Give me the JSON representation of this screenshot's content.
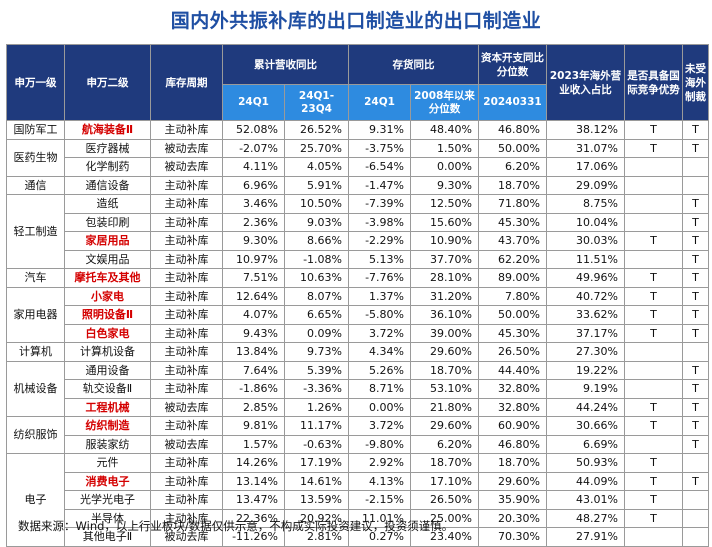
{
  "title": "国内外共振补库的出口制造业的出口制造业",
  "headers": {
    "level1": "申万一级",
    "level2": "申万二级",
    "cycle": "库存周期",
    "revenue_group": "累计营收同比",
    "inventory_group": "存货同比",
    "capex_group": "资本开支同比分位数",
    "overseas": "2023年海外营业收入占比",
    "competitive": "是否具备国际竞争优势",
    "sanction": "未受海外制裁",
    "sub_rev_1": "24Q1",
    "sub_rev_2": "24Q1-23Q4",
    "sub_inv_1": "24Q1",
    "sub_inv_2": "2008年以来分位数",
    "sub_capex": "20240331"
  },
  "groups": [
    {
      "name": "国防军工",
      "rows": [
        {
          "l2": "航海装备Ⅱ",
          "red": true,
          "cycle": "主动补库",
          "r1": "52.08%",
          "r2": "26.52%",
          "i1": "9.31%",
          "i2": "48.40%",
          "cx": "46.80%",
          "ov": "38.12%",
          "comp": "T",
          "sanc": "T"
        }
      ]
    },
    {
      "name": "医药生物",
      "rows": [
        {
          "l2": "医疗器械",
          "red": false,
          "cycle": "被动去库",
          "r1": "-2.07%",
          "r2": "25.70%",
          "i1": "-3.75%",
          "i2": "1.50%",
          "cx": "50.00%",
          "ov": "31.07%",
          "comp": "T",
          "sanc": "T"
        },
        {
          "l2": "化学制药",
          "red": false,
          "cycle": "被动去库",
          "r1": "4.11%",
          "r2": "4.05%",
          "i1": "-6.54%",
          "i2": "0.00%",
          "cx": "6.20%",
          "ov": "17.06%",
          "comp": "",
          "sanc": ""
        }
      ]
    },
    {
      "name": "通信",
      "rows": [
        {
          "l2": "通信设备",
          "red": false,
          "cycle": "主动补库",
          "r1": "6.96%",
          "r2": "5.91%",
          "i1": "-1.47%",
          "i2": "9.30%",
          "cx": "18.70%",
          "ov": "29.09%",
          "comp": "",
          "sanc": ""
        }
      ]
    },
    {
      "name": "轻工制造",
      "rows": [
        {
          "l2": "造纸",
          "red": false,
          "cycle": "主动补库",
          "r1": "3.46%",
          "r2": "10.50%",
          "i1": "-7.39%",
          "i2": "12.50%",
          "cx": "71.80%",
          "ov": "8.75%",
          "comp": "",
          "sanc": "T"
        },
        {
          "l2": "包装印刷",
          "red": false,
          "cycle": "主动补库",
          "r1": "2.36%",
          "r2": "9.03%",
          "i1": "-3.98%",
          "i2": "15.60%",
          "cx": "45.30%",
          "ov": "10.04%",
          "comp": "",
          "sanc": "T"
        },
        {
          "l2": "家居用品",
          "red": true,
          "cycle": "主动补库",
          "r1": "9.30%",
          "r2": "8.66%",
          "i1": "-2.29%",
          "i2": "10.90%",
          "cx": "43.70%",
          "ov": "30.03%",
          "comp": "T",
          "sanc": "T"
        },
        {
          "l2": "文娱用品",
          "red": false,
          "cycle": "主动补库",
          "r1": "10.97%",
          "r2": "-1.08%",
          "i1": "5.13%",
          "i2": "37.70%",
          "cx": "62.20%",
          "ov": "11.51%",
          "comp": "",
          "sanc": "T"
        }
      ]
    },
    {
      "name": "汽车",
      "rows": [
        {
          "l2": "摩托车及其他",
          "red": true,
          "cycle": "主动补库",
          "r1": "7.51%",
          "r2": "10.63%",
          "i1": "-7.76%",
          "i2": "28.10%",
          "cx": "89.00%",
          "ov": "49.96%",
          "comp": "T",
          "sanc": "T"
        }
      ]
    },
    {
      "name": "家用电器",
      "rows": [
        {
          "l2": "小家电",
          "red": true,
          "cycle": "主动补库",
          "r1": "12.64%",
          "r2": "8.07%",
          "i1": "1.37%",
          "i2": "31.20%",
          "cx": "7.80%",
          "ov": "40.72%",
          "comp": "T",
          "sanc": "T"
        },
        {
          "l2": "照明设备Ⅱ",
          "red": true,
          "cycle": "主动补库",
          "r1": "4.07%",
          "r2": "6.65%",
          "i1": "-5.80%",
          "i2": "36.10%",
          "cx": "50.00%",
          "ov": "33.62%",
          "comp": "T",
          "sanc": "T"
        },
        {
          "l2": "白色家电",
          "red": true,
          "cycle": "主动补库",
          "r1": "9.43%",
          "r2": "0.09%",
          "i1": "3.72%",
          "i2": "39.00%",
          "cx": "45.30%",
          "ov": "37.17%",
          "comp": "T",
          "sanc": "T"
        }
      ]
    },
    {
      "name": "计算机",
      "rows": [
        {
          "l2": "计算机设备",
          "red": false,
          "cycle": "主动补库",
          "r1": "13.84%",
          "r2": "9.73%",
          "i1": "4.34%",
          "i2": "29.60%",
          "cx": "26.50%",
          "ov": "27.30%",
          "comp": "",
          "sanc": ""
        }
      ]
    },
    {
      "name": "机械设备",
      "rows": [
        {
          "l2": "通用设备",
          "red": false,
          "cycle": "主动补库",
          "r1": "7.64%",
          "r2": "5.39%",
          "i1": "5.26%",
          "i2": "18.70%",
          "cx": "44.40%",
          "ov": "19.22%",
          "comp": "",
          "sanc": "T"
        },
        {
          "l2": "轨交设备Ⅱ",
          "red": false,
          "cycle": "主动补库",
          "r1": "-1.86%",
          "r2": "-3.36%",
          "i1": "8.71%",
          "i2": "53.10%",
          "cx": "32.80%",
          "ov": "9.19%",
          "comp": "",
          "sanc": "T"
        },
        {
          "l2": "工程机械",
          "red": true,
          "cycle": "被动去库",
          "r1": "2.85%",
          "r2": "1.26%",
          "i1": "0.00%",
          "i2": "21.80%",
          "cx": "32.80%",
          "ov": "44.24%",
          "comp": "T",
          "sanc": "T"
        }
      ]
    },
    {
      "name": "纺织服饰",
      "rows": [
        {
          "l2": "纺织制造",
          "red": true,
          "cycle": "主动补库",
          "r1": "9.81%",
          "r2": "11.17%",
          "i1": "3.72%",
          "i2": "29.60%",
          "cx": "60.90%",
          "ov": "30.66%",
          "comp": "T",
          "sanc": "T"
        },
        {
          "l2": "服装家纺",
          "red": false,
          "cycle": "被动去库",
          "r1": "1.57%",
          "r2": "-0.63%",
          "i1": "-9.80%",
          "i2": "6.20%",
          "cx": "46.80%",
          "ov": "6.69%",
          "comp": "",
          "sanc": "T"
        }
      ]
    },
    {
      "name": "电子",
      "rows": [
        {
          "l2": "元件",
          "red": false,
          "cycle": "主动补库",
          "r1": "14.26%",
          "r2": "17.19%",
          "i1": "2.92%",
          "i2": "18.70%",
          "cx": "18.70%",
          "ov": "50.93%",
          "comp": "T",
          "sanc": ""
        },
        {
          "l2": "消费电子",
          "red": true,
          "cycle": "主动补库",
          "r1": "13.14%",
          "r2": "14.61%",
          "i1": "4.13%",
          "i2": "17.10%",
          "cx": "29.60%",
          "ov": "44.09%",
          "comp": "T",
          "sanc": "T"
        },
        {
          "l2": "光学光电子",
          "red": false,
          "cycle": "主动补库",
          "r1": "13.47%",
          "r2": "13.59%",
          "i1": "-2.15%",
          "i2": "26.50%",
          "cx": "35.90%",
          "ov": "43.01%",
          "comp": "T",
          "sanc": ""
        },
        {
          "l2": "半导体",
          "red": false,
          "cycle": "主动补库",
          "r1": "22.36%",
          "r2": "20.92%",
          "i1": "11.01%",
          "i2": "25.00%",
          "cx": "20.30%",
          "ov": "48.27%",
          "comp": "T",
          "sanc": ""
        },
        {
          "l2": "其他电子Ⅱ",
          "red": false,
          "cycle": "被动去库",
          "r1": "-11.26%",
          "r2": "2.81%",
          "i1": "0.27%",
          "i2": "23.40%",
          "cx": "70.30%",
          "ov": "27.91%",
          "comp": "",
          "sanc": ""
        }
      ]
    }
  ],
  "footer": "数据来源：Wind，以上行业板块/数据仅供示意，不构成实际投资建议，投资须谨慎。"
}
